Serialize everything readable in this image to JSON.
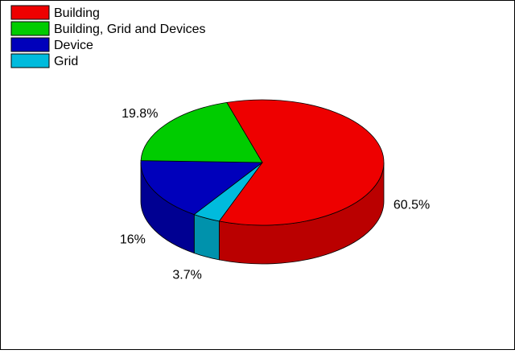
{
  "chart_data": {
    "type": "pie",
    "title": "",
    "three_d": true,
    "legend_position": "top-left",
    "slices": [
      {
        "label": "Building",
        "value": 60.5,
        "value_label": "60.5%",
        "color": "#ee0000"
      },
      {
        "label": "Grid",
        "value": 3.7,
        "value_label": "3.7%",
        "color": "#00bbdd"
      },
      {
        "label": "Device",
        "value": 16,
        "value_label": "16%",
        "color": "#0000bb"
      },
      {
        "label": "Building, Grid and Devices",
        "value": 19.8,
        "value_label": "19.8%",
        "color": "#00cc00"
      }
    ],
    "legend": [
      {
        "label": "Building",
        "color": "#ee0000"
      },
      {
        "label": "Building, Grid and Devices",
        "color": "#00cc00"
      },
      {
        "label": "Device",
        "color": "#0000bb"
      },
      {
        "label": "Grid",
        "color": "#00bbdd"
      }
    ]
  }
}
